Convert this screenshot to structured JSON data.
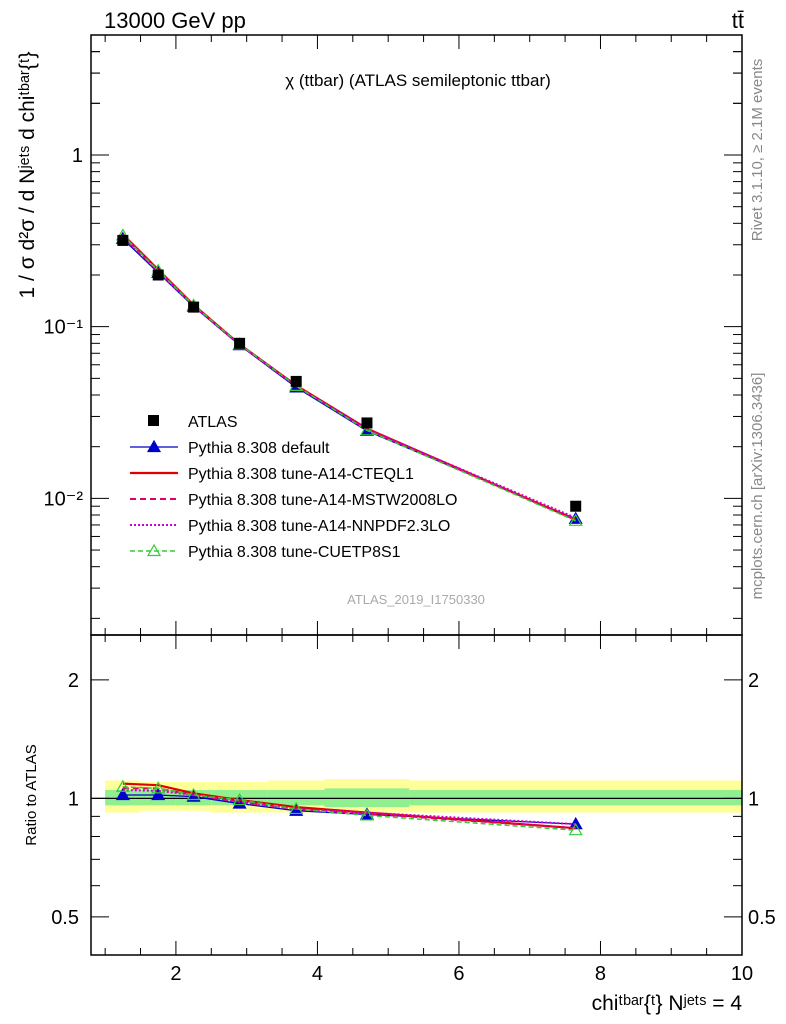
{
  "header": {
    "left": "13000 GeV pp",
    "right": "tt̄",
    "title": "χ (ttbar) (ATLAS semileptonic ttbar)",
    "side_rivet": "Rivet 3.1.10, ≥ 2.1M events",
    "side_url": "mcplots.cern.ch [arXiv:1306.3436]",
    "watermark": "ATLAS_2019_I1750330"
  },
  "axes": {
    "top_ylabel": "1 / σ d²σ / d Nʲᵉᵗˢ d chiᵗᵇᵃʳ{ᵗ}",
    "bottom_ylabel": "Ratio to ATLAS",
    "xlabel": "chiᵗᵇᵃʳ{ᵗ} Nʲᵉᵗˢ = 4",
    "top_yticks": [
      "10⁻²",
      "10⁻¹",
      "1"
    ],
    "bottom_yticks": [
      "0.5",
      "1",
      "2"
    ],
    "xticks": [
      "2",
      "4",
      "6",
      "8",
      "10"
    ]
  },
  "colors": {
    "data": "#000000",
    "default": "#0000cc",
    "a14cteq": "#e00000",
    "a14mstw": "#e0006a",
    "a14nnpdf": "#cc00cc",
    "cuetp8s1": "#33cc33",
    "band_stat": "#90f090",
    "band_syst": "#ffff99"
  },
  "chart_data": [
    {
      "type": "line",
      "panel": "main",
      "yscale": "log",
      "xlim": [
        0.8,
        10.0
      ],
      "ylim": [
        0.0016,
        5.0
      ],
      "legend_position": "center-left",
      "x": [
        1.25,
        1.75,
        2.25,
        2.9,
        3.7,
        4.7,
        7.65
      ],
      "series": [
        {
          "name": "ATLAS",
          "marker": "square",
          "values": [
            0.318,
            0.2,
            0.13,
            0.08,
            0.048,
            0.0275,
            0.009
          ]
        },
        {
          "name": "Pythia 8.308 default",
          "marker": "triangle",
          "values": [
            0.325,
            0.206,
            0.131,
            0.078,
            0.0443,
            0.0247,
            0.0076
          ]
        },
        {
          "name": "Pythia 8.308 tune-A14-CTEQL1",
          "marker": "none",
          "values": [
            0.345,
            0.215,
            0.134,
            0.079,
            0.0455,
            0.0255,
            0.0075
          ]
        },
        {
          "name": "Pythia 8.308 tune-A14-MSTW2008LO",
          "marker": "none",
          "values": [
            0.338,
            0.211,
            0.133,
            0.079,
            0.0452,
            0.0252,
            0.0075
          ]
        },
        {
          "name": "Pythia 8.308 tune-A14-NNPDF2.3LO",
          "marker": "none",
          "values": [
            0.335,
            0.209,
            0.132,
            0.0785,
            0.045,
            0.0253,
            0.0077
          ]
        },
        {
          "name": "Pythia 8.308 tune-CUETP8S1",
          "marker": "open-triangle",
          "values": [
            0.34,
            0.212,
            0.133,
            0.079,
            0.0452,
            0.0249,
            0.0074
          ]
        }
      ]
    },
    {
      "type": "line",
      "panel": "ratio",
      "yscale": "log",
      "xlim": [
        0.8,
        10.0
      ],
      "ylim": [
        0.4,
        2.6
      ],
      "x": [
        1.25,
        1.75,
        2.25,
        2.9,
        3.7,
        4.7,
        7.65
      ],
      "bands": {
        "edges": [
          1.0,
          1.5,
          2.0,
          2.5,
          3.3,
          4.1,
          5.3,
          10.0
        ],
        "stat_low": [
          0.96,
          0.96,
          0.96,
          0.96,
          0.96,
          0.95,
          0.96
        ],
        "stat_high": [
          1.05,
          1.05,
          1.05,
          1.05,
          1.05,
          1.06,
          1.05
        ],
        "syst_low": [
          0.92,
          0.93,
          0.93,
          0.92,
          0.92,
          0.92,
          0.92
        ],
        "syst_high": [
          1.11,
          1.1,
          1.1,
          1.1,
          1.11,
          1.12,
          1.11
        ]
      },
      "series": [
        {
          "name": "Pythia 8.308 default",
          "values": [
            1.02,
            1.02,
            1.01,
            0.97,
            0.93,
            0.91,
            0.86
          ]
        },
        {
          "name": "Pythia 8.308 tune-A14-CTEQL1",
          "values": [
            1.09,
            1.08,
            1.03,
            0.99,
            0.95,
            0.92,
            0.84
          ]
        },
        {
          "name": "Pythia 8.308 tune-A14-MSTW2008LO",
          "values": [
            1.06,
            1.06,
            1.02,
            0.98,
            0.94,
            0.915,
            0.84
          ]
        },
        {
          "name": "Pythia 8.308 tune-A14-NNPDF2.3LO",
          "values": [
            1.05,
            1.045,
            1.02,
            0.98,
            0.94,
            0.92,
            0.86
          ]
        },
        {
          "name": "Pythia 8.308 tune-CUETP8S1",
          "values": [
            1.07,
            1.06,
            1.02,
            0.99,
            0.94,
            0.905,
            0.83
          ]
        }
      ]
    }
  ]
}
